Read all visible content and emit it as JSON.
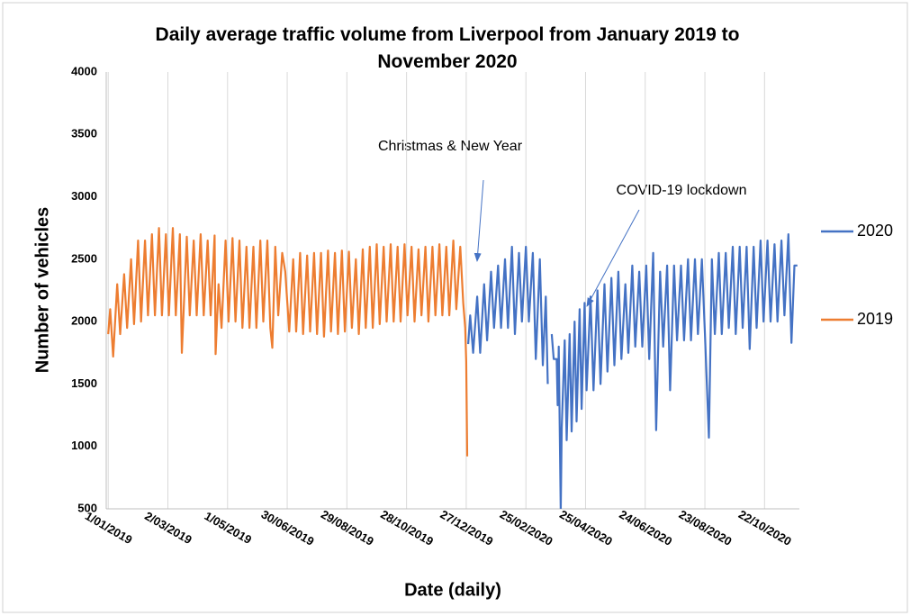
{
  "chart_data": {
    "type": "line",
    "title": "Daily average traffic volume from Liverpool from January 2019 to November 2020",
    "x_label": "Date (daily)",
    "y_label": "Number of vehicles",
    "xlim": [
      -2,
      695
    ],
    "ylim": [
      500,
      4000
    ],
    "xticks": [
      {
        "value": 0,
        "label": "1/01/2019"
      },
      {
        "value": 60,
        "label": "2/03/2019"
      },
      {
        "value": 120,
        "label": "1/05/2019"
      },
      {
        "value": 180,
        "label": "30/06/2019"
      },
      {
        "value": 240,
        "label": "29/08/2019"
      },
      {
        "value": 300,
        "label": "28/10/2019"
      },
      {
        "value": 360,
        "label": "27/12/2019"
      },
      {
        "value": 420,
        "label": "25/02/2020"
      },
      {
        "value": 480,
        "label": "25/04/2020"
      },
      {
        "value": 540,
        "label": "24/06/2020"
      },
      {
        "value": 600,
        "label": "23/08/2020"
      },
      {
        "value": 660,
        "label": "22/10/2020"
      }
    ],
    "yticks": [
      500,
      1000,
      1500,
      2000,
      2500,
      3000,
      3500,
      4000
    ],
    "grid": "x",
    "annotations": [
      "Christmas & New Year",
      "COVID-19 lockdown"
    ],
    "series": [
      {
        "name": "2020",
        "color": "#4472c4",
        "x": [
          362,
          364,
          367,
          371,
          374,
          378,
          381,
          385,
          388,
          392,
          395,
          399,
          402,
          406,
          409,
          413,
          416,
          420,
          423,
          427,
          430,
          434,
          437,
          440,
          442,
          444,
          446,
          448,
          451,
          452,
          453,
          455,
          456,
          459,
          461,
          464,
          466,
          469,
          471,
          474,
          476,
          479,
          481,
          485,
          488,
          492,
          495,
          499,
          502,
          506,
          509,
          513,
          516,
          520,
          523,
          527,
          530,
          534,
          537,
          541,
          544,
          548,
          551,
          555,
          558,
          562,
          565,
          569,
          572,
          576,
          579,
          583,
          586,
          590,
          593,
          597,
          600,
          604,
          607,
          610,
          614,
          617,
          621,
          624,
          628,
          631,
          635,
          638,
          642,
          645,
          649,
          652,
          656,
          659,
          663,
          666,
          670,
          673,
          677,
          680,
          684,
          687,
          690,
          693
        ],
        "values": [
          1820,
          2050,
          1750,
          2200,
          1750,
          2300,
          1850,
          2400,
          1950,
          2450,
          1950,
          2500,
          1950,
          2600,
          1900,
          2550,
          2000,
          2600,
          2000,
          2550,
          1700,
          2500,
          1650,
          2200,
          1500,
          null,
          1900,
          1700,
          1700,
          1330,
          1800,
          480,
          1150,
          1850,
          1050,
          1900,
          1120,
          2000,
          1200,
          2100,
          1300,
          2150,
          1450,
          2200,
          1450,
          2250,
          1500,
          2300,
          1600,
          2350,
          1650,
          2400,
          1700,
          2300,
          1750,
          2450,
          1800,
          2400,
          1800,
          2450,
          1700,
          2550,
          1130,
          2400,
          1800,
          2450,
          1450,
          2450,
          1850,
          2450,
          1850,
          2500,
          1850,
          2500,
          1900,
          2500,
          1900,
          1070,
          2500,
          1900,
          2550,
          1900,
          2550,
          1950,
          2600,
          1900,
          2600,
          1950,
          2600,
          1780,
          2600,
          1950,
          2650,
          2000,
          2650,
          2000,
          2620,
          2000,
          2650,
          2050,
          2700,
          1830,
          2450,
          2450
        ]
      },
      {
        "name": "2019",
        "color": "#ed7d31",
        "x": [
          0,
          2,
          5,
          9,
          12,
          16,
          19,
          23,
          26,
          30,
          33,
          37,
          40,
          44,
          47,
          51,
          54,
          58,
          61,
          65,
          68,
          72,
          74,
          79,
          82,
          86,
          89,
          93,
          96,
          100,
          103,
          107,
          108,
          111,
          114,
          118,
          121,
          125,
          128,
          132,
          135,
          139,
          142,
          146,
          149,
          153,
          156,
          160,
          163,
          165,
          168,
          171,
          175,
          178,
          182,
          186,
          189,
          193,
          196,
          200,
          203,
          207,
          210,
          214,
          217,
          221,
          224,
          228,
          231,
          235,
          238,
          242,
          245,
          249,
          252,
          256,
          259,
          263,
          266,
          270,
          273,
          277,
          280,
          284,
          287,
          291,
          294,
          298,
          301,
          305,
          308,
          312,
          315,
          319,
          322,
          326,
          329,
          333,
          336,
          340,
          343,
          347,
          350,
          354,
          357,
          359,
          360,
          361
        ],
        "values": [
          1900,
          2100,
          1720,
          2300,
          1900,
          2380,
          1950,
          2500,
          1980,
          2650,
          2000,
          2650,
          2050,
          2700,
          2050,
          2750,
          2050,
          2700,
          2050,
          2750,
          2050,
          2700,
          1750,
          2680,
          2050,
          2650,
          2050,
          2700,
          2050,
          2650,
          2050,
          2690,
          1740,
          2300,
          1950,
          2650,
          2000,
          2670,
          2000,
          2650,
          1950,
          2600,
          1950,
          2600,
          1950,
          2650,
          2000,
          2650,
          1950,
          1790,
          2600,
          2050,
          2550,
          2400,
          1920,
          2500,
          1920,
          2550,
          1900,
          2530,
          1920,
          2550,
          1900,
          2550,
          1880,
          2570,
          1920,
          2550,
          1900,
          2570,
          1920,
          2560,
          1950,
          2500,
          1900,
          2580,
          1950,
          2600,
          1950,
          2620,
          1980,
          2600,
          2000,
          2620,
          2000,
          2600,
          2000,
          2620,
          2050,
          2600,
          2000,
          2580,
          2050,
          2600,
          2000,
          2600,
          2050,
          2620,
          2050,
          2600,
          2050,
          2650,
          2100,
          2600,
          2150,
          1950,
          1680,
          920
        ]
      }
    ]
  }
}
